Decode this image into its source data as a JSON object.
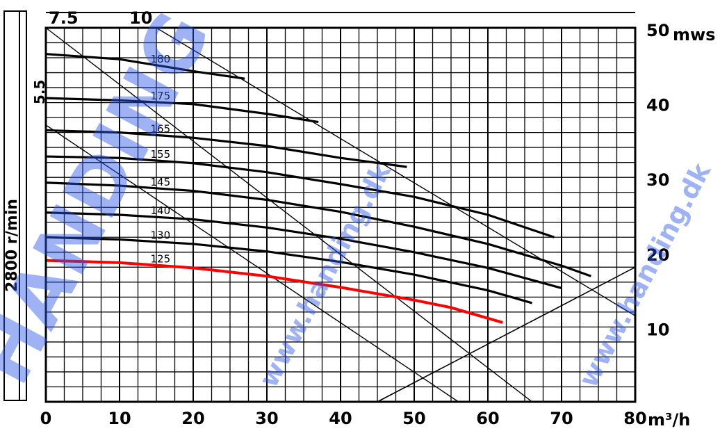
{
  "chart_data": {
    "type": "line",
    "speed_label": "2800 r/min",
    "x_unit": "m³/h",
    "y_unit": "mws",
    "xlim": [
      0,
      80
    ],
    "ylim": [
      0,
      50
    ],
    "x_ticks": [
      "0",
      "10",
      "20",
      "30",
      "40",
      "50",
      "60",
      "70",
      "80"
    ],
    "y_ticks": [
      {
        "value": 50,
        "label": "50"
      },
      {
        "value": 40,
        "label": "40"
      },
      {
        "value": 30,
        "label": "30"
      },
      {
        "value": 20,
        "label": "20"
      },
      {
        "value": 10,
        "label": "10"
      }
    ],
    "power_labels": [
      "7.5",
      "10",
      "5.5"
    ],
    "series": [
      {
        "name": "180",
        "points": [
          [
            0,
            46.5
          ],
          [
            10,
            45.8
          ],
          [
            20,
            44.2
          ],
          [
            27,
            43.2
          ]
        ]
      },
      {
        "name": "175",
        "points": [
          [
            0,
            40.6
          ],
          [
            10,
            40.3
          ],
          [
            20,
            39.8
          ],
          [
            30,
            38.5
          ],
          [
            37,
            37.4
          ]
        ]
      },
      {
        "name": "165",
        "points": [
          [
            0,
            36.3
          ],
          [
            10,
            36.0
          ],
          [
            20,
            35.3
          ],
          [
            30,
            34.2
          ],
          [
            40,
            32.6
          ],
          [
            49,
            31.4
          ]
        ]
      },
      {
        "name": "155",
        "points": [
          [
            0,
            32.8
          ],
          [
            10,
            32.6
          ],
          [
            20,
            31.9
          ],
          [
            30,
            30.7
          ],
          [
            40,
            29.1
          ],
          [
            50,
            27.4
          ],
          [
            60,
            25.0
          ],
          [
            69,
            22.0
          ]
        ]
      },
      {
        "name": "145",
        "points": [
          [
            0,
            29.3
          ],
          [
            10,
            28.9
          ],
          [
            20,
            28.2
          ],
          [
            30,
            27.0
          ],
          [
            40,
            25.4
          ],
          [
            50,
            23.4
          ],
          [
            60,
            21.1
          ],
          [
            70,
            18.2
          ],
          [
            74,
            16.8
          ]
        ]
      },
      {
        "name": "140",
        "points": [
          [
            0,
            25.3
          ],
          [
            10,
            25.0
          ],
          [
            20,
            24.4
          ],
          [
            30,
            23.3
          ],
          [
            40,
            21.8
          ],
          [
            50,
            20.0
          ],
          [
            60,
            17.9
          ],
          [
            70,
            15.2
          ]
        ]
      },
      {
        "name": "130",
        "points": [
          [
            0,
            22.0
          ],
          [
            10,
            21.7
          ],
          [
            20,
            21.1
          ],
          [
            30,
            20.1
          ],
          [
            40,
            18.7
          ],
          [
            50,
            17.0
          ],
          [
            60,
            14.9
          ],
          [
            66,
            13.2
          ]
        ]
      },
      {
        "name": "125",
        "color": "#ff0000",
        "points": [
          [
            0,
            18.9
          ],
          [
            10,
            18.6
          ],
          [
            20,
            17.9
          ],
          [
            30,
            16.8
          ],
          [
            40,
            15.3
          ],
          [
            50,
            13.6
          ],
          [
            55,
            12.6
          ],
          [
            62,
            10.6
          ]
        ]
      }
    ],
    "power_limit_lines": [
      {
        "label": "7.5",
        "points": [
          [
            0,
            50
          ],
          [
            66,
            0
          ]
        ]
      },
      {
        "label": "10",
        "points": [
          [
            15,
            50
          ],
          [
            80,
            11.5
          ]
        ]
      },
      {
        "label": "5.5",
        "points": [
          [
            0,
            37
          ],
          [
            56,
            0
          ]
        ]
      }
    ],
    "system_curve": {
      "points": [
        [
          45,
          0
        ],
        [
          80,
          18
        ]
      ]
    },
    "grid": true
  },
  "watermark": {
    "text": "www.handing.dk",
    "big_text": "HANDING",
    "color": "#2a56e8"
  }
}
